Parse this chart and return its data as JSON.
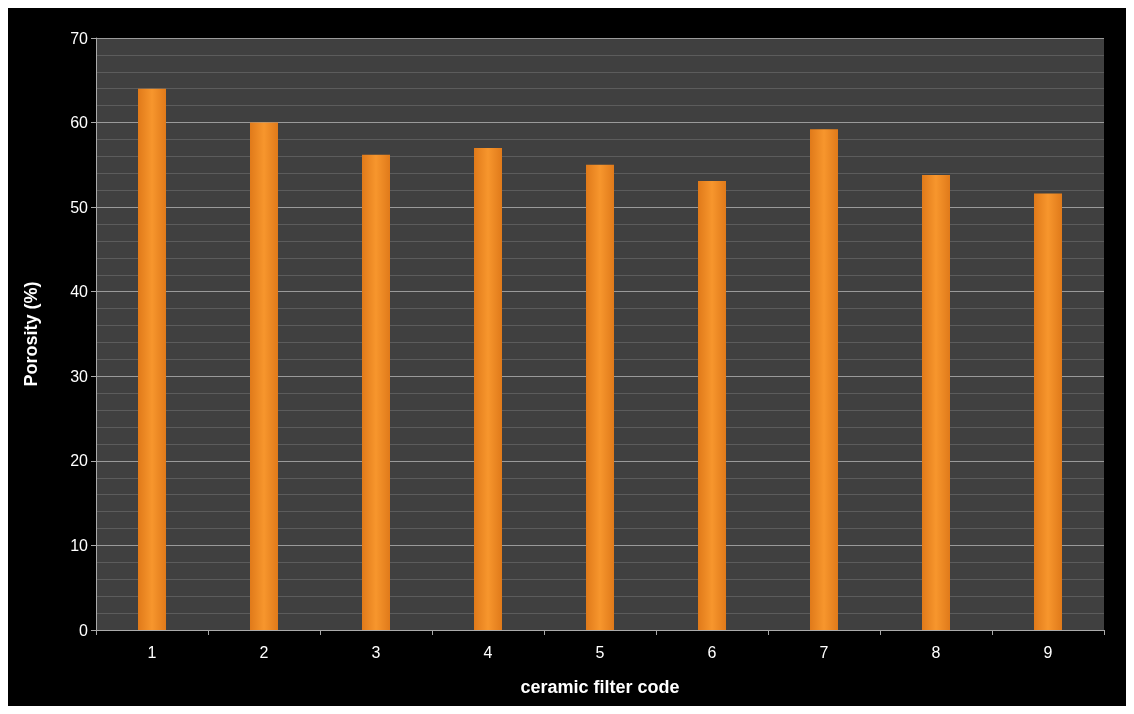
{
  "chart_data": {
    "type": "bar",
    "xlabel": "ceramic filter code",
    "ylabel": "Porosity (%)",
    "categories": [
      "1",
      "2",
      "3",
      "4",
      "5",
      "6",
      "7",
      "8",
      "9"
    ],
    "values": [
      64,
      60,
      56.2,
      57,
      55,
      53.1,
      59.2,
      53.8,
      51.6
    ],
    "color": "#f7962d",
    "ylim": [
      0,
      70
    ],
    "yticks": [
      0,
      10,
      20,
      30,
      40,
      50,
      60,
      70
    ],
    "grid": "y"
  }
}
